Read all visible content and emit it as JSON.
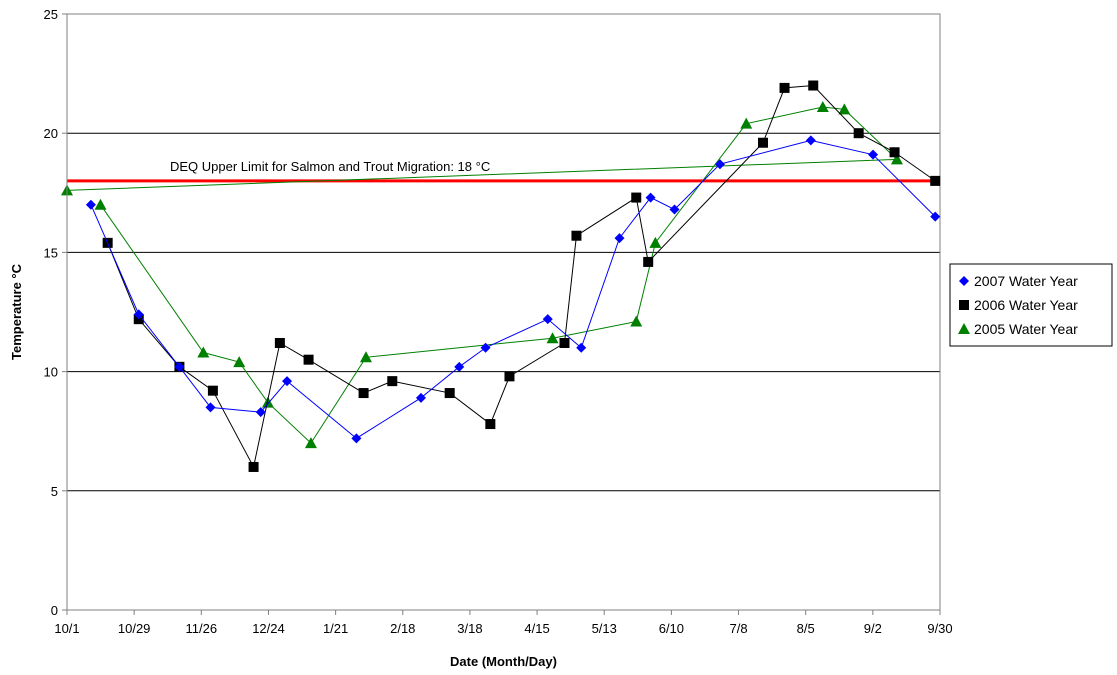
{
  "chart_data": {
    "type": "line",
    "title": "",
    "xlabel": "Date (Month/Day)",
    "ylabel": "Temperature °C",
    "ylim": [
      0,
      25
    ],
    "yticks": [
      0,
      5,
      10,
      15,
      20,
      25
    ],
    "xlim": [
      "10/1",
      "9/30"
    ],
    "xticks": [
      "10/1",
      "10/29",
      "11/26",
      "12/24",
      "1/21",
      "2/18",
      "3/18",
      "4/15",
      "5/13",
      "6/10",
      "7/8",
      "8/5",
      "9/2",
      "9/30"
    ],
    "grid": "horizontal",
    "legend_position": "right",
    "reference_line": {
      "value": 18,
      "label": "DEQ Upper Limit for Salmon and Trout Migration: 18 °C",
      "color": "#ff0000"
    },
    "series": [
      {
        "name": "2007 Water Year",
        "color": "#0000ff",
        "marker": "diamond",
        "points": [
          [
            "10/11",
            17.0
          ],
          [
            "10/31",
            12.4
          ],
          [
            "11/17",
            10.2
          ],
          [
            "11/30",
            8.5
          ],
          [
            "12/21",
            8.3
          ],
          [
            "1/1",
            9.6
          ],
          [
            "1/30",
            7.2
          ],
          [
            "2/26",
            8.9
          ],
          [
            "3/14",
            10.2
          ],
          [
            "3/25",
            11.0
          ],
          [
            "4/20",
            12.2
          ],
          [
            "5/4",
            11.0
          ],
          [
            "5/20",
            15.6
          ],
          [
            "6/2",
            17.3
          ],
          [
            "6/12",
            16.8
          ],
          [
            "7/1",
            18.7
          ],
          [
            "8/8",
            19.7
          ],
          [
            "9/3",
            19.1
          ],
          [
            "9/29",
            16.5
          ]
        ]
      },
      {
        "name": "2006 Water Year",
        "color": "#000000",
        "marker": "square",
        "points": [
          [
            "10/18",
            15.4
          ],
          [
            "10/31",
            12.2
          ],
          [
            "11/17",
            10.2
          ],
          [
            "12/1",
            9.2
          ],
          [
            "12/18",
            6.0
          ],
          [
            "12/29",
            11.2
          ],
          [
            "1/10",
            10.5
          ],
          [
            "2/2",
            9.1
          ],
          [
            "2/14",
            9.6
          ],
          [
            "3/10",
            9.1
          ],
          [
            "3/27",
            7.8
          ],
          [
            "4/4",
            9.8
          ],
          [
            "4/27",
            11.2
          ],
          [
            "5/2",
            15.7
          ],
          [
            "5/27",
            17.3
          ],
          [
            "6/1",
            14.6
          ],
          [
            "7/19",
            19.6
          ],
          [
            "7/28",
            21.9
          ],
          [
            "8/9",
            22.0
          ],
          [
            "8/28",
            20.0
          ],
          [
            "9/12",
            19.2
          ],
          [
            "9/29",
            18.0
          ]
        ]
      },
      {
        "name": "2005 Water Year",
        "color": "#008000",
        "marker": "triangle",
        "points": [
          [
            "10/15",
            17.0
          ],
          [
            "11/27",
            10.8
          ],
          [
            "12/12",
            10.4
          ],
          [
            "12/24",
            8.7
          ],
          [
            "1/11",
            7.0
          ],
          [
            "2/3",
            10.6
          ],
          [
            "4/22",
            11.4
          ],
          [
            "5/27",
            12.1
          ],
          [
            "6/4",
            15.4
          ],
          [
            "7/12",
            20.4
          ],
          [
            "8/13",
            21.1
          ],
          [
            "8/22",
            21.0
          ],
          [
            "9/13",
            18.9
          ],
          [
            "10/1",
            17.6
          ]
        ]
      }
    ]
  }
}
